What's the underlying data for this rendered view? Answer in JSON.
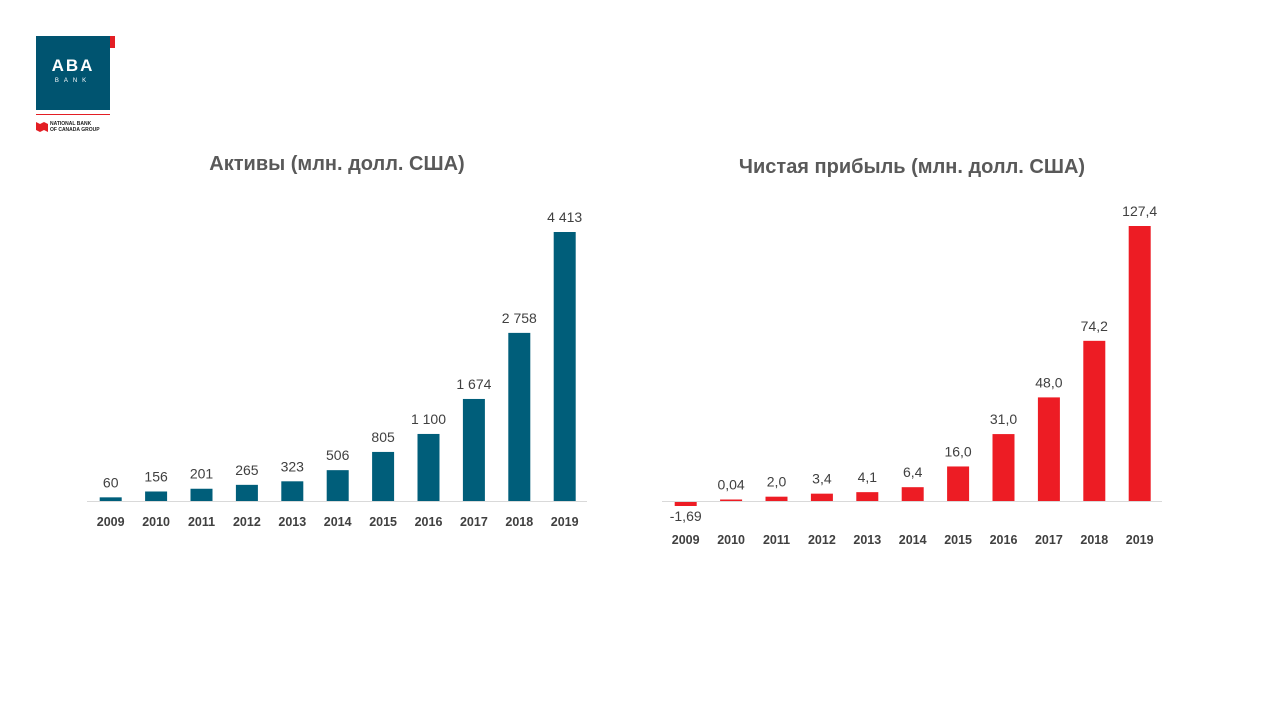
{
  "logo": {
    "name": "ABA",
    "sub": "BANK",
    "group_line1": "NATIONAL BANK",
    "group_line2": "OF CANADA GROUP"
  },
  "colors": {
    "assets_bar": "#005e7a",
    "profit_bar": "#ed1c24",
    "title": "#595959",
    "label": "#404040",
    "axis": "#d9d9d9"
  },
  "chart_data": [
    {
      "type": "bar",
      "title": "Активы (млн. долл. США)",
      "categories": [
        "2009",
        "2010",
        "2011",
        "2012",
        "2013",
        "2014",
        "2015",
        "2016",
        "2017",
        "2018",
        "2019"
      ],
      "values": [
        60,
        156,
        201,
        265,
        323,
        506,
        805,
        1100,
        1674,
        2758,
        4413
      ],
      "labels": [
        "60",
        "156",
        "201",
        "265",
        "323",
        "506",
        "805",
        "1 100",
        "1 674",
        "2 758",
        "4 413"
      ],
      "ylim": [
        0,
        4413
      ],
      "grid": false,
      "legend": "none"
    },
    {
      "type": "bar",
      "title": "Чистая прибыль (млн. долл. США)",
      "categories": [
        "2009",
        "2010",
        "2011",
        "2012",
        "2013",
        "2014",
        "2015",
        "2016",
        "2017",
        "2018",
        "2019"
      ],
      "values": [
        -1.69,
        0.04,
        2.0,
        3.4,
        4.1,
        6.4,
        16.0,
        31.0,
        48.0,
        74.2,
        127.4
      ],
      "labels": [
        "-1,69",
        "0,04",
        "2,0",
        "3,4",
        "4,1",
        "6,4",
        "16,0",
        "31,0",
        "48,0",
        "74,2",
        "127,4"
      ],
      "ylim": [
        -1.69,
        127.4
      ],
      "grid": false,
      "legend": "none"
    }
  ]
}
